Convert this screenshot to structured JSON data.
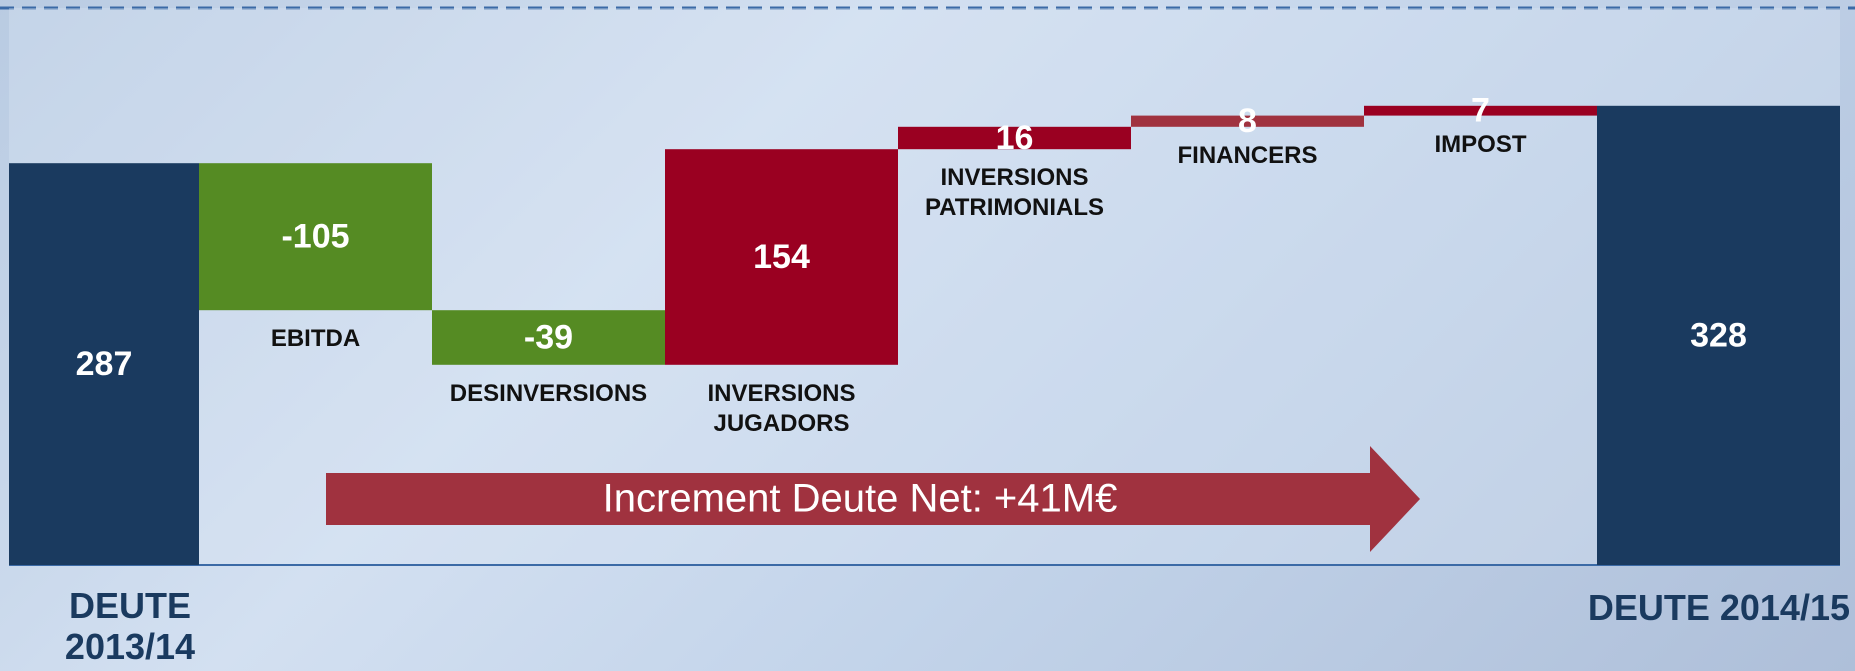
{
  "chart_data": {
    "type": "waterfall",
    "categories": [
      "DEUTE 2013/14",
      "EBITDA",
      "DESINVERSIONS",
      "INVERSIONS JUGADORS",
      "INVERSIONS PATRIMONIALS",
      "FINANCERS",
      "IMPOST",
      "DEUTE 2014/15"
    ],
    "values": [
      287,
      -105,
      -39,
      154,
      16,
      8,
      7,
      328
    ],
    "colors": [
      "#1a3a5f",
      "#558b23",
      "#558b23",
      "#9a0021",
      "#9a0021",
      "#a0323f",
      "#9a0021",
      "#1a3a5f"
    ],
    "annotation": "Increment Deute Net: +41M€"
  }
}
